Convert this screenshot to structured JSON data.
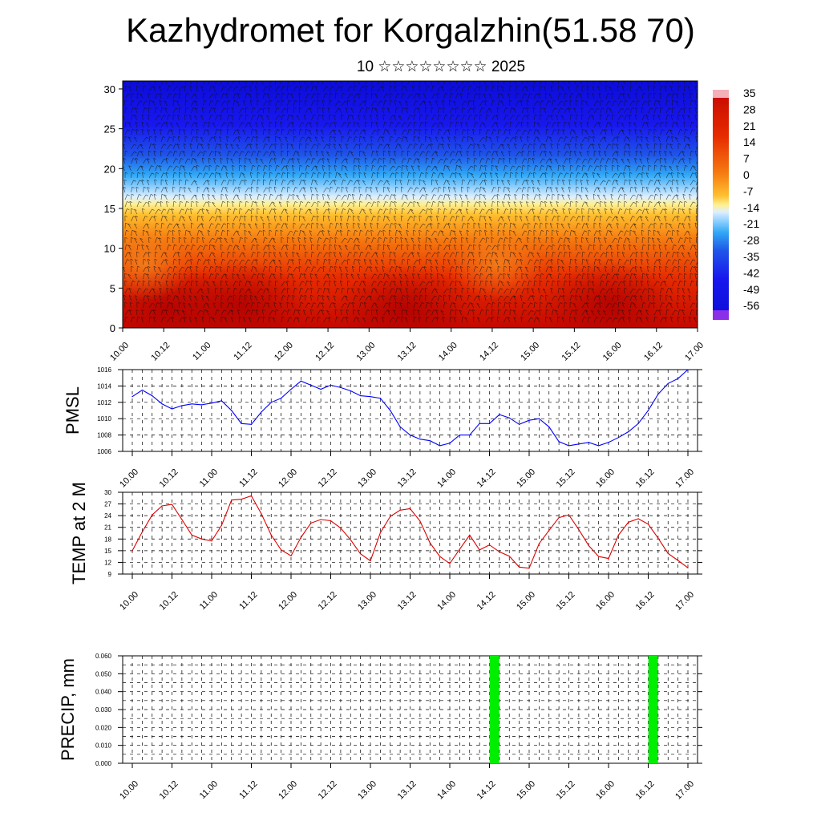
{
  "page": {
    "title": "Kazhydromet for Korgalzhin(51.58 70)",
    "subtitle": "10 ☆☆☆☆☆☆☆☆ 2025"
  },
  "chart_data": [
    {
      "type": "heatmap",
      "name": "Temperature cross-section with wind barbs",
      "x_ticks": [
        "10.00",
        "10.12",
        "11.00",
        "11.12",
        "12.00",
        "12.12",
        "13.00",
        "13.12",
        "14.00",
        "14.12",
        "15.00",
        "15.12",
        "16.00",
        "16.12",
        "17.00"
      ],
      "y_ticks": [
        0,
        5,
        10,
        15,
        20,
        25,
        30
      ],
      "ylim": [
        0,
        31
      ],
      "colorbar_labels": [
        "35",
        "28",
        "21",
        "14",
        "7",
        "0",
        "-7",
        "-14",
        "-21",
        "-28",
        "-35",
        "-42",
        "-49",
        "-56"
      ],
      "colors": {
        "warm": "#cc0a00",
        "neutral": "#ffee80",
        "cold": "#1a1aff"
      }
    },
    {
      "type": "line",
      "ylabel": "PMSL",
      "ylim": [
        1006,
        1016
      ],
      "y_ticks": [
        "1006",
        "1008",
        "1010",
        "1012",
        "1014",
        "1016"
      ],
      "x_ticks": [
        "10.00",
        "10.12",
        "11.00",
        "11.12",
        "12.00",
        "12.12",
        "13.00",
        "13.12",
        "14.00",
        "14.12",
        "15.00",
        "15.12",
        "16.00",
        "16.12",
        "17.00"
      ],
      "color": "#0000ff",
      "values": [
        1012.7,
        1013.5,
        1012.8,
        1011.8,
        1011.2,
        1011.6,
        1011.8,
        1011.7,
        1011.9,
        1012.2,
        1011.0,
        1009.4,
        1009.3,
        1010.8,
        1012.0,
        1012.5,
        1013.6,
        1014.6,
        1014.1,
        1013.6,
        1014.1,
        1013.8,
        1013.4,
        1012.8,
        1012.7,
        1012.5,
        1011.0,
        1009.0,
        1008.0,
        1007.5,
        1007.3,
        1006.7,
        1007.0,
        1008.0,
        1008.0,
        1009.4,
        1009.4,
        1010.5,
        1010.1,
        1009.3,
        1009.8,
        1010.0,
        1009.0,
        1007.2,
        1006.7,
        1006.9,
        1007.1,
        1006.7,
        1007.1,
        1007.7,
        1008.4,
        1009.4,
        1011.0,
        1013.0,
        1014.3,
        1014.9,
        1016.0
      ]
    },
    {
      "type": "line",
      "ylabel": "TEMP at 2 M",
      "ylim": [
        9,
        30
      ],
      "y_ticks": [
        "9",
        "12",
        "15",
        "18",
        "21",
        "24",
        "27",
        "30"
      ],
      "x_ticks": [
        "10.00",
        "10.12",
        "11.00",
        "11.12",
        "12.00",
        "12.12",
        "13.00",
        "13.12",
        "14.00",
        "14.12",
        "15.00",
        "15.12",
        "16.00",
        "16.12",
        "17.00"
      ],
      "color": "#dd0000",
      "values": [
        15.0,
        19.8,
        24.2,
        26.5,
        26.9,
        23.0,
        19.0,
        18.0,
        17.5,
        21.5,
        28.0,
        28.2,
        29.1,
        24.5,
        19.0,
        15.2,
        13.7,
        18.4,
        22.1,
        23.0,
        22.7,
        20.8,
        17.8,
        14.2,
        12.4,
        19.6,
        23.8,
        25.4,
        25.8,
        22.6,
        17.0,
        13.5,
        11.7,
        15.4,
        19.0,
        15.2,
        16.5,
        14.7,
        13.6,
        10.8,
        10.5,
        16.8,
        20.2,
        23.5,
        24.2,
        20.4,
        16.3,
        13.5,
        13.0,
        19.0,
        22.3,
        23.2,
        21.8,
        18.2,
        14.3,
        12.5,
        10.6
      ]
    },
    {
      "type": "bar",
      "ylabel": "PRECIP, mm",
      "ylim": [
        0,
        0.06
      ],
      "y_ticks": [
        "0.000",
        "0.010",
        "0.020",
        "0.030",
        "0.040",
        "0.050",
        "0.060"
      ],
      "x_ticks": [
        "10.00",
        "10.12",
        "11.00",
        "11.12",
        "12.00",
        "12.12",
        "13.00",
        "13.12",
        "14.00",
        "14.12",
        "15.00",
        "15.12",
        "16.00",
        "16.12",
        "17.00"
      ],
      "color": "#00ee00",
      "bars": [
        {
          "x_step": 36.5,
          "value": 0.06
        },
        {
          "x_step": 52.5,
          "value": 0.06
        }
      ]
    }
  ]
}
